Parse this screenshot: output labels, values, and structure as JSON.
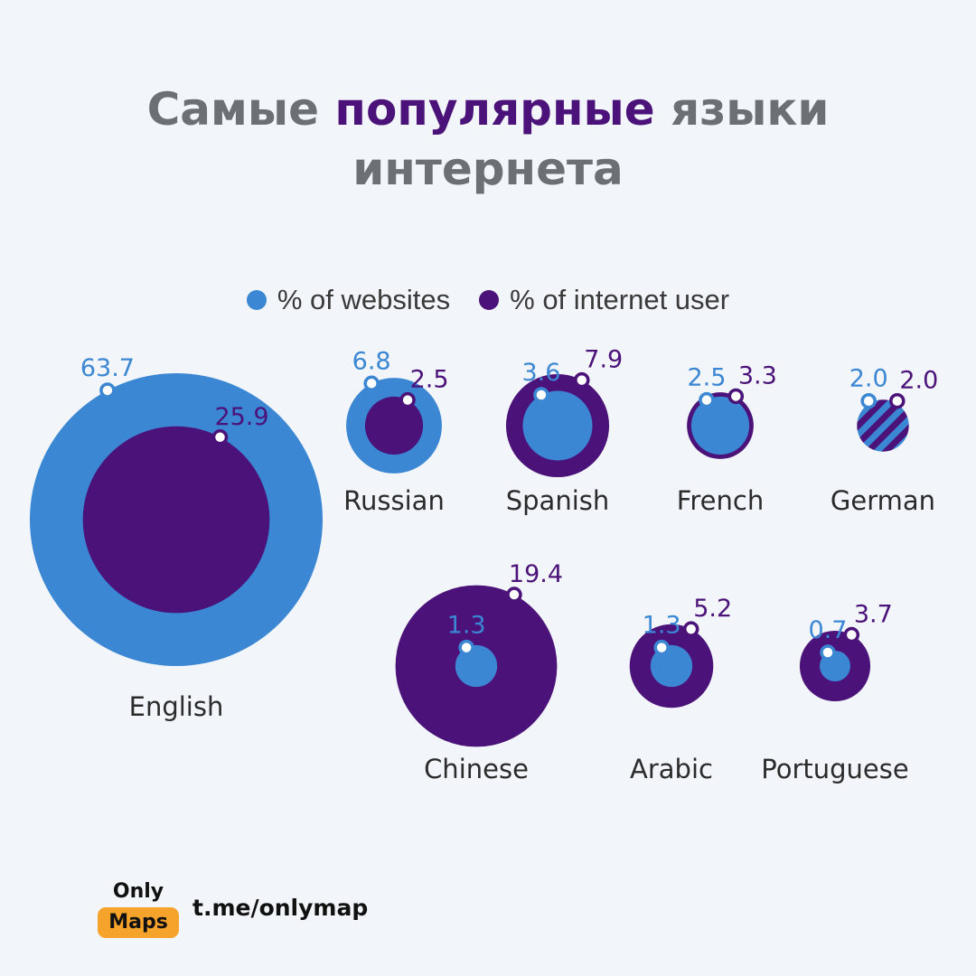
{
  "title": {
    "line1_pre": "Самые ",
    "line1_accent": "популярные",
    "line1_post": " языки",
    "line2": "интернета"
  },
  "colors": {
    "websites": "#3b87d4",
    "users": "#4b1279",
    "title_gray": "#6c6f74",
    "logo_orange": "#f5a32a"
  },
  "chart_data": {
    "type": "bubble",
    "legend": {
      "position": "top",
      "items": [
        "% of websites",
        "% of internet user"
      ]
    },
    "series": [
      {
        "name": "% of websites",
        "key": "websites"
      },
      {
        "name": "% of internet user",
        "key": "users"
      }
    ],
    "languages": [
      {
        "name": "English",
        "websites": "63.7",
        "users": "25.9"
      },
      {
        "name": "Russian",
        "websites": "6.8",
        "users": "2.5"
      },
      {
        "name": "Spanish",
        "websites": "3.6",
        "users": "7.9"
      },
      {
        "name": "French",
        "websites": "2.5",
        "users": "3.3"
      },
      {
        "name": "German",
        "websites": "2.0",
        "users": "2.0"
      },
      {
        "name": "Chinese",
        "websites": "1.3",
        "users": "19.4"
      },
      {
        "name": "Arabic",
        "websites": "1.3",
        "users": "5.2"
      },
      {
        "name": "Portuguese",
        "websites": "0.7",
        "users": "3.7"
      }
    ]
  },
  "logo": {
    "line1": "Only",
    "line2": "Maps"
  },
  "footer": {
    "link": "t.me/onlymap"
  }
}
